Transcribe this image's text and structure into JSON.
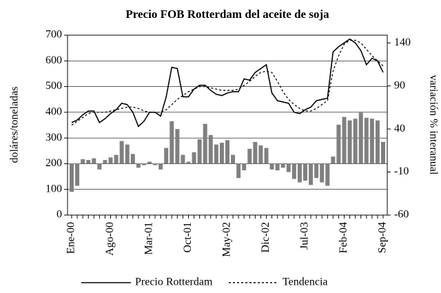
{
  "chart_data": {
    "type": "combo",
    "title": "Precio FOB Rotterdam del aceite de soja",
    "y_label": "doláres/toneladas",
    "y2_label": "variación % interanual",
    "categories": [
      "Ene-00",
      null,
      null,
      null,
      null,
      null,
      null,
      "Ago-00",
      null,
      null,
      null,
      null,
      null,
      null,
      "Mar-01",
      null,
      null,
      null,
      null,
      null,
      null,
      "Oct-01",
      null,
      null,
      null,
      null,
      null,
      null,
      "May-02",
      null,
      null,
      null,
      null,
      null,
      null,
      "Dic-02",
      null,
      null,
      null,
      null,
      null,
      null,
      "Jul-03",
      null,
      null,
      null,
      null,
      null,
      null,
      "Feb-04",
      null,
      null,
      null,
      null,
      null,
      null,
      "Sep-04"
    ],
    "ylim": [
      0,
      700
    ],
    "yticks": [
      0,
      100,
      200,
      300,
      400,
      500,
      600,
      700
    ],
    "y2lim": [
      -60,
      149
    ],
    "y2ticks": [
      -60,
      -10,
      40,
      90,
      140
    ],
    "series": [
      {
        "type": "bar",
        "axis": "y2",
        "color": "#808080",
        "values": [
          -33,
          -26,
          5,
          4,
          6,
          -7,
          4,
          7,
          10,
          26,
          22,
          11,
          -5,
          -2,
          2,
          -2,
          -7,
          18,
          49,
          40,
          10,
          2,
          13,
          28,
          46,
          33,
          22,
          24,
          27,
          10,
          -17,
          -8,
          17,
          25,
          21,
          18,
          -7,
          -8,
          -5,
          -10,
          -18,
          -22,
          -20,
          -25,
          -17,
          -22,
          -26,
          8,
          45,
          54,
          50,
          52,
          59,
          53,
          52,
          50,
          25
        ]
      },
      {
        "name": "Precio Rotterdam",
        "type": "line",
        "axis": "y",
        "color": "#000000",
        "style": "solid",
        "values": [
          360,
          370,
          390,
          405,
          405,
          360,
          375,
          395,
          410,
          435,
          430,
          400,
          345,
          365,
          400,
          400,
          385,
          460,
          575,
          570,
          460,
          460,
          490,
          505,
          505,
          485,
          470,
          465,
          475,
          480,
          480,
          530,
          525,
          555,
          570,
          585,
          475,
          445,
          440,
          435,
          400,
          395,
          410,
          420,
          445,
          450,
          455,
          635,
          655,
          670,
          685,
          670,
          640,
          585,
          610,
          600,
          555
        ]
      },
      {
        "name": "Tendencia",
        "type": "line",
        "axis": "y",
        "color": "#000000",
        "style": "dashed",
        "values": [
          350,
          365,
          380,
          395,
          400,
          400,
          400,
          405,
          410,
          415,
          420,
          420,
          415,
          405,
          400,
          400,
          400,
          410,
          430,
          450,
          465,
          480,
          490,
          500,
          500,
          495,
          490,
          485,
          485,
          485,
          490,
          505,
          520,
          540,
          555,
          560,
          555,
          520,
          480,
          450,
          430,
          415,
          405,
          405,
          415,
          430,
          445,
          560,
          620,
          665,
          680,
          680,
          670,
          645,
          620,
          600,
          580
        ]
      }
    ]
  }
}
